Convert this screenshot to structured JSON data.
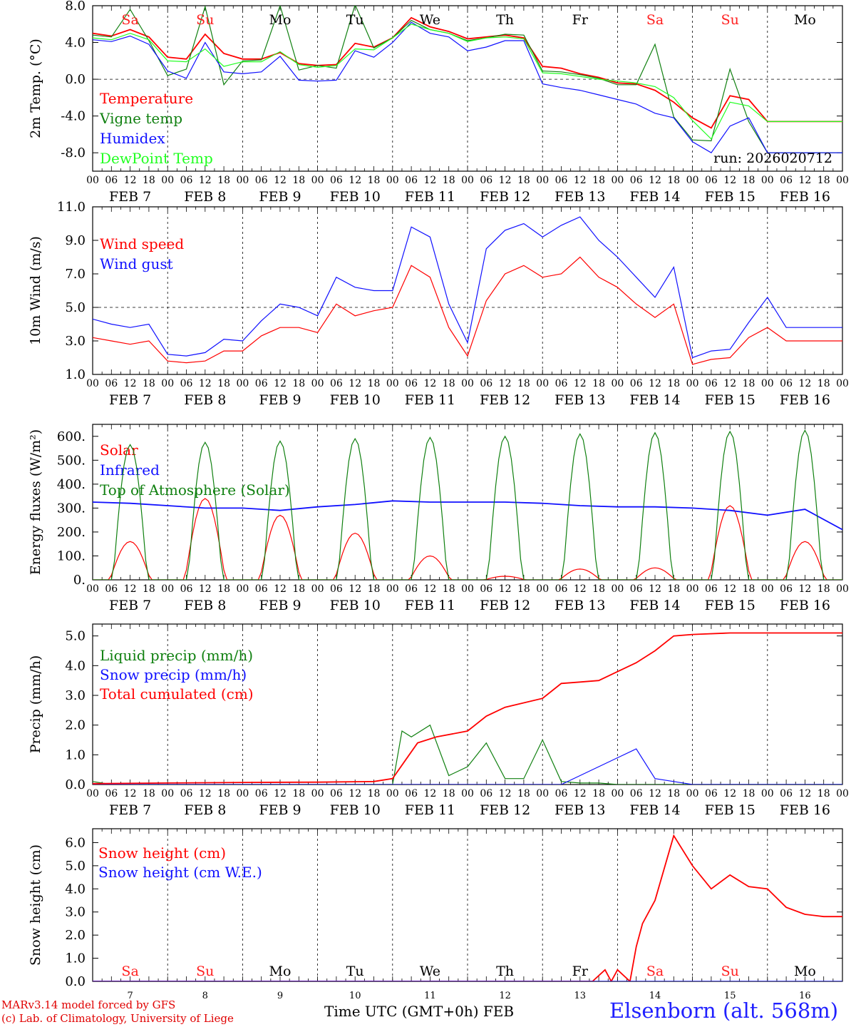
{
  "run_label": "run: 2026020712",
  "day_names": [
    "Sa",
    "Su",
    "Mo",
    "Tu",
    "We",
    "Th",
    "Fr",
    "Sa",
    "Su",
    "Mo"
  ],
  "date_labels": [
    "FEB 7",
    "FEB 8",
    "FEB 9",
    "FEB 10",
    "FEB 11",
    "FEB 12",
    "FEB 13",
    "FEB 14",
    "FEB 15",
    "FEB 16"
  ],
  "day_numbers": [
    "7",
    "8",
    "9",
    "10",
    "11",
    "12",
    "13",
    "14",
    "15",
    "16"
  ],
  "hour_ticks": [
    "00",
    "06",
    "12",
    "18"
  ],
  "hour_end": "00",
  "footer": {
    "model": "MARv3.14 model forced by GFS",
    "credit": "(c) Lab. of Climatology, University of Liege",
    "x_title": "Time UTC (GMT+0h)",
    "x_title_month": "FEB",
    "station": "Elsenborn (alt. 568m)"
  },
  "colors": {
    "red": "#ff0000",
    "green": "#108010",
    "blue": "#1010ff",
    "lightgreen": "#20ff20",
    "weekend": "#ff2020"
  },
  "chart_data": [
    {
      "type": "line",
      "ylabel": "2m Temp. (°C)",
      "ylim": [
        -10,
        8
      ],
      "ticks": [
        8,
        4,
        0,
        -4,
        -8
      ],
      "tick_labels": [
        "8.0",
        "4.0",
        "0.0",
        "-4.0",
        "-8.0"
      ],
      "dashed_y": 0,
      "x_unit": "hours since FEB 7 00 UTC",
      "series": [
        {
          "name": "Temperature",
          "color": "red",
          "x": [
            0,
            6,
            12,
            18,
            24,
            30,
            36,
            42,
            48,
            54,
            60,
            66,
            72,
            78,
            84,
            90,
            96,
            102,
            108,
            114,
            120,
            126,
            132,
            138,
            144,
            150,
            156,
            162,
            168,
            174,
            180,
            186,
            192,
            198,
            204,
            210,
            216,
            222,
            228,
            234,
            240
          ],
          "y": [
            5.0,
            4.7,
            5.4,
            4.6,
            2.4,
            2.2,
            4.9,
            2.8,
            2.2,
            2.2,
            2.9,
            1.7,
            1.5,
            1.6,
            3.9,
            3.5,
            4.5,
            6.7,
            5.7,
            5.2,
            4.4,
            4.6,
            4.8,
            4.5,
            1.4,
            1.2,
            0.6,
            0.2,
            -0.4,
            -0.5,
            -1.2,
            -2.5,
            -4.2,
            -5.3,
            -1.8,
            -2.2,
            -4.6,
            -4.6,
            -4.6,
            -4.6,
            -4.6
          ]
        },
        {
          "name": "Vigne temp",
          "color": "green",
          "x": [
            0,
            6,
            12,
            18,
            24,
            30,
            36,
            42,
            48,
            54,
            60,
            66,
            72,
            78,
            84,
            90,
            96,
            102,
            108,
            114,
            120,
            126,
            132,
            138,
            144,
            150,
            156,
            162,
            168,
            174,
            180,
            186,
            192,
            198,
            204,
            210,
            216,
            222,
            228,
            234,
            240
          ],
          "y": [
            4.8,
            4.6,
            7.6,
            4.2,
            0.4,
            1.1,
            7.9,
            -0.6,
            2.0,
            2.1,
            8.0,
            1.0,
            1.5,
            1.2,
            8.1,
            3.4,
            4.5,
            6.4,
            5.4,
            5.0,
            4.2,
            4.5,
            4.9,
            4.8,
            0.9,
            0.8,
            0.5,
            0.1,
            -0.6,
            -0.6,
            3.8,
            -4.1,
            -6.6,
            -6.7,
            1.1,
            -4.6,
            -8.0,
            -8.0,
            -8.0,
            -8.0,
            -8.0
          ]
        },
        {
          "name": "Humidex",
          "color": "blue",
          "x": [
            0,
            6,
            12,
            18,
            24,
            30,
            36,
            42,
            48,
            54,
            60,
            66,
            72,
            78,
            84,
            90,
            96,
            102,
            108,
            114,
            120,
            126,
            132,
            138,
            144,
            150,
            156,
            162,
            168,
            174,
            180,
            186,
            192,
            198,
            204,
            210,
            216,
            222,
            228,
            234,
            240
          ],
          "y": [
            4.3,
            4.1,
            4.7,
            3.8,
            0.9,
            0.1,
            4.0,
            0.8,
            0.6,
            0.8,
            2.5,
            -0.1,
            -0.2,
            -0.1,
            3.1,
            2.4,
            4.0,
            6.2,
            5.0,
            4.6,
            3.1,
            3.5,
            4.2,
            4.2,
            -0.5,
            -0.9,
            -1.2,
            -1.7,
            -2.2,
            -2.7,
            -3.7,
            -4.2,
            -6.8,
            -8.0,
            -5.1,
            -4.2,
            -8.0,
            -8.0,
            -8.0,
            -8.0,
            -8.0
          ]
        },
        {
          "name": "DewPoint Temp",
          "color": "lightgreen",
          "x": [
            0,
            6,
            12,
            18,
            24,
            30,
            36,
            42,
            48,
            54,
            60,
            66,
            72,
            78,
            84,
            90,
            96,
            102,
            108,
            114,
            120,
            126,
            132,
            138,
            144,
            150,
            156,
            162,
            168,
            174,
            180,
            186,
            192,
            198,
            204,
            210,
            216,
            222,
            228,
            234,
            240
          ],
          "y": [
            4.5,
            4.3,
            5.0,
            4.3,
            2.0,
            1.9,
            3.3,
            1.4,
            1.9,
            1.9,
            3.0,
            1.6,
            1.3,
            1.5,
            3.3,
            3.2,
            4.5,
            6.0,
            5.4,
            5.0,
            4.1,
            4.5,
            4.6,
            4.4,
            0.7,
            0.6,
            0.3,
            0.0,
            -0.2,
            -0.4,
            -0.8,
            -2.0,
            -4.5,
            -6.5,
            -2.5,
            -2.9,
            -4.6,
            -4.6,
            -4.6,
            -4.6,
            -4.6
          ]
        }
      ]
    },
    {
      "type": "line",
      "ylabel": "10m Wind (m/s)",
      "ylim": [
        1,
        11
      ],
      "ticks": [
        11,
        9,
        7,
        5,
        3,
        1
      ],
      "tick_labels": [
        "11.0",
        "9.0",
        "7.0",
        "5.0",
        "3.0",
        "1.0"
      ],
      "dashed_y": 5,
      "series": [
        {
          "name": "Wind speed",
          "color": "red",
          "x": [
            0,
            6,
            12,
            18,
            24,
            30,
            36,
            42,
            48,
            54,
            60,
            66,
            72,
            78,
            84,
            90,
            96,
            102,
            108,
            114,
            120,
            126,
            132,
            138,
            144,
            150,
            156,
            162,
            168,
            174,
            180,
            186,
            192,
            198,
            204,
            210,
            216,
            222,
            228,
            234,
            240
          ],
          "y": [
            3.2,
            3.0,
            2.8,
            3.0,
            1.8,
            1.7,
            1.8,
            2.4,
            2.4,
            3.3,
            3.8,
            3.8,
            3.5,
            5.2,
            4.5,
            4.8,
            5.0,
            7.5,
            6.8,
            3.8,
            2.1,
            5.4,
            7.0,
            7.5,
            6.8,
            7.0,
            8.0,
            6.8,
            6.2,
            5.2,
            4.4,
            5.2,
            1.6,
            1.9,
            2.0,
            3.2,
            3.8,
            3.0,
            3.0,
            3.0,
            3.0
          ]
        },
        {
          "name": "Wind gust",
          "color": "blue",
          "x": [
            0,
            6,
            12,
            18,
            24,
            30,
            36,
            42,
            48,
            54,
            60,
            66,
            72,
            78,
            84,
            90,
            96,
            102,
            108,
            114,
            120,
            126,
            132,
            138,
            144,
            150,
            156,
            162,
            168,
            174,
            180,
            186,
            192,
            198,
            204,
            210,
            216,
            222,
            228,
            234,
            240
          ],
          "y": [
            4.3,
            4.0,
            3.8,
            4.0,
            2.2,
            2.1,
            2.3,
            3.1,
            3.0,
            4.2,
            5.2,
            5.0,
            4.5,
            6.8,
            6.2,
            6.0,
            6.0,
            9.8,
            9.2,
            5.2,
            2.9,
            8.5,
            9.6,
            10.0,
            9.2,
            9.9,
            10.4,
            9.0,
            8.0,
            6.8,
            5.6,
            7.4,
            2.0,
            2.4,
            2.5,
            4.1,
            5.6,
            3.8,
            3.8,
            3.8,
            3.8
          ]
        }
      ]
    },
    {
      "type": "line",
      "ylabel": "Energy fluxes (W/m²)",
      "ylim": [
        0,
        650
      ],
      "ticks": [
        600,
        500,
        400,
        300,
        200,
        100,
        0
      ],
      "tick_labels": [
        "600.",
        "500.",
        "400.",
        "300.",
        "200.",
        "100.",
        "0."
      ],
      "series": [
        {
          "name": "Solar",
          "color": "red",
          "daily_peak": [
            160,
            340,
            270,
            195,
            100,
            15,
            45,
            50,
            310,
            160
          ]
        },
        {
          "name": "Infrared",
          "color": "blue",
          "x": [
            0,
            12,
            24,
            36,
            48,
            60,
            72,
            84,
            96,
            108,
            120,
            132,
            144,
            156,
            168,
            180,
            192,
            204,
            216,
            228,
            240
          ],
          "y": [
            325,
            320,
            310,
            300,
            300,
            290,
            305,
            315,
            330,
            325,
            325,
            325,
            320,
            310,
            305,
            305,
            300,
            290,
            270,
            295,
            210
          ]
        },
        {
          "name": "Top of Atmosphere (Solar)",
          "color": "green",
          "daily_peak": [
            565,
            575,
            580,
            590,
            595,
            600,
            610,
            615,
            620,
            625
          ]
        }
      ]
    },
    {
      "type": "line",
      "ylabel": "Precip (mm/h)",
      "ylim": [
        0,
        5.4
      ],
      "ticks": [
        5,
        4,
        3,
        2,
        1,
        0
      ],
      "tick_labels": [
        "5.0",
        "4.0",
        "3.0",
        "2.0",
        "1.0",
        "0.0"
      ],
      "series": [
        {
          "name": "Liquid precip (mm/h)",
          "color": "green",
          "x": [
            0,
            6,
            12,
            18,
            24,
            30,
            36,
            42,
            48,
            54,
            60,
            66,
            72,
            78,
            84,
            90,
            96,
            99,
            102,
            108,
            114,
            120,
            126,
            132,
            138,
            144,
            150,
            156,
            162,
            168,
            174,
            180,
            186,
            192,
            198,
            204,
            210,
            216,
            222,
            228,
            234,
            240
          ],
          "y": [
            0.1,
            0,
            0,
            0,
            0,
            0,
            0,
            0,
            0,
            0,
            0,
            0,
            0,
            0,
            0,
            0,
            0,
            1.8,
            1.6,
            2.0,
            0.3,
            0.6,
            1.4,
            0.2,
            0.2,
            1.5,
            0.1,
            0.05,
            0.05,
            0,
            0,
            0,
            0,
            0,
            0,
            0,
            0,
            0,
            0,
            0,
            0,
            0
          ]
        },
        {
          "name": "Snow precip (mm/h)",
          "color": "blue",
          "x": [
            0,
            6,
            12,
            18,
            24,
            30,
            36,
            42,
            48,
            54,
            60,
            66,
            72,
            78,
            84,
            90,
            96,
            102,
            108,
            114,
            120,
            126,
            132,
            138,
            144,
            150,
            156,
            162,
            168,
            174,
            180,
            186,
            192,
            198,
            204,
            210,
            216,
            222,
            228,
            234,
            240
          ],
          "y": [
            0,
            0,
            0,
            0,
            0,
            0,
            0,
            0,
            0,
            0,
            0,
            0,
            0,
            0,
            0,
            0,
            0,
            0,
            0,
            0,
            0,
            0,
            0,
            0,
            0,
            0,
            0.3,
            0.6,
            0.9,
            1.2,
            0.2,
            0.1,
            0,
            0,
            0,
            0,
            0,
            0,
            0,
            0,
            0
          ]
        },
        {
          "name": "Total cumulated (cm)",
          "color": "red",
          "x": [
            0,
            24,
            48,
            72,
            90,
            96,
            100,
            104,
            110,
            120,
            126,
            132,
            144,
            150,
            156,
            162,
            168,
            174,
            180,
            186,
            192,
            204,
            216,
            228,
            240
          ],
          "y": [
            0.03,
            0.05,
            0.07,
            0.08,
            0.1,
            0.2,
            0.8,
            1.4,
            1.6,
            1.8,
            2.3,
            2.6,
            2.9,
            3.4,
            3.45,
            3.5,
            3.8,
            4.1,
            4.5,
            5.0,
            5.05,
            5.1,
            5.1,
            5.1,
            5.1
          ]
        }
      ]
    },
    {
      "type": "line",
      "ylabel": "Snow height (cm)",
      "ylim": [
        0,
        6.6
      ],
      "ticks": [
        6,
        5,
        4,
        3,
        2,
        1,
        0
      ],
      "tick_labels": [
        "6.0",
        "5.0",
        "4.0",
        "3.0",
        "2.0",
        "1.0",
        "0.0"
      ],
      "series": [
        {
          "name": "Snow height (cm)",
          "color": "red",
          "x": [
            0,
            144,
            146,
            148,
            150,
            160,
            164,
            166,
            168,
            172,
            174,
            176,
            180,
            186,
            192,
            198,
            204,
            210,
            216,
            222,
            228,
            234,
            240
          ],
          "y": [
            0,
            0,
            0,
            0,
            0,
            0,
            0.5,
            0,
            0.5,
            0,
            1.5,
            2.5,
            3.5,
            6.3,
            5.0,
            4.0,
            4.6,
            4.1,
            4.0,
            3.2,
            2.9,
            2.8,
            2.8
          ]
        },
        {
          "name": "Snow height (cm W.E.)",
          "color": "blue",
          "x": [
            0,
            240
          ],
          "y": [
            0,
            0
          ]
        }
      ]
    }
  ]
}
